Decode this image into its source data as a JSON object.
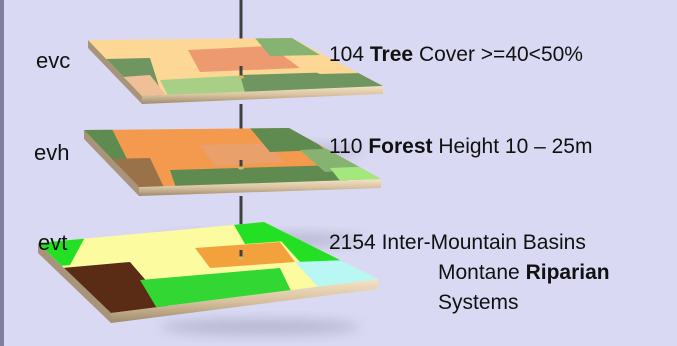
{
  "colors": {
    "background": "#d9d9f3",
    "left_border": "#7f7fa0",
    "pin": "#404040",
    "evc": {
      "a": "#fdd795",
      "b": "#f5a77b",
      "c": "#ee9a70",
      "d": "#a9cf86",
      "e": "#6f9560",
      "f": "#efbf97",
      "g": "#86b272"
    },
    "evh": {
      "a": "#f49a4e",
      "b": "#fbc27d",
      "c": "#86b272",
      "d": "#9a724a",
      "e": "#5f8a50",
      "f": "#a3e87c",
      "g": "#e9a06b"
    },
    "evt": {
      "a": "#fdfba0",
      "b": "#24e024",
      "c": "#f2a13c",
      "d": "#5a2b15",
      "e": "#b8f7f3",
      "f": "#33d733"
    }
  },
  "layers": [
    {
      "name": "evc",
      "description": {
        "number": "104",
        "bold": "Tree",
        "rest": "Cover >=40<50%"
      }
    },
    {
      "name": "evh",
      "description": {
        "number": "110",
        "bold": "Forest",
        "rest": "Height 10 – 25m"
      }
    },
    {
      "name": "evt",
      "description": {
        "number": "2154",
        "line1_rest": "Inter-Mountain Basins",
        "line2_prefix": "Montane",
        "bold": "Riparian",
        "line3": "Systems"
      }
    }
  ]
}
